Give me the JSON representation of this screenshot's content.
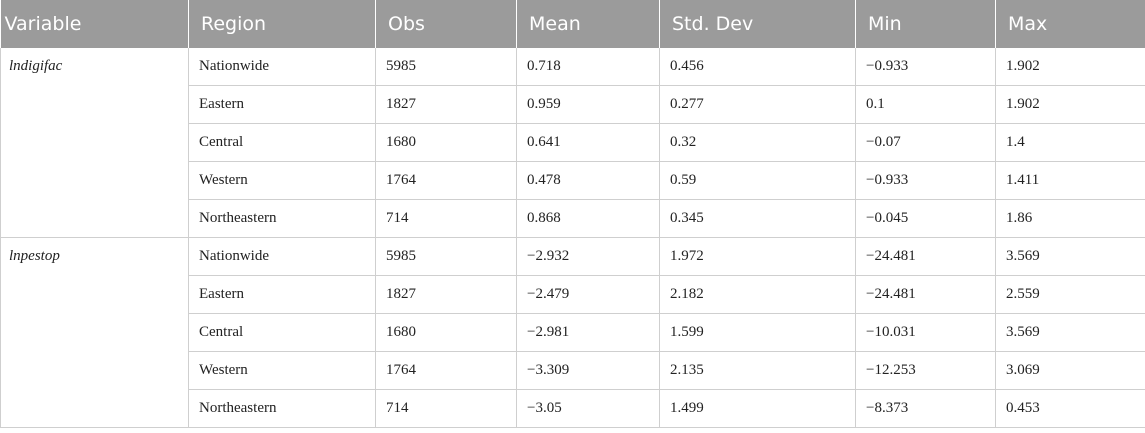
{
  "table": {
    "headers": [
      "Variable",
      "Region",
      "Obs",
      "Mean",
      "Std. Dev",
      "Min",
      "Max"
    ],
    "groups": [
      {
        "variable": "lndigifac",
        "rows": [
          [
            "Nationwide",
            "5985",
            "0.718",
            "0.456",
            "−0.933",
            "1.902"
          ],
          [
            "Eastern",
            "1827",
            "0.959",
            "0.277",
            "0.1",
            "1.902"
          ],
          [
            "Central",
            "1680",
            "0.641",
            "0.32",
            "−0.07",
            "1.4"
          ],
          [
            "Western",
            "1764",
            "0.478",
            "0.59",
            "−0.933",
            "1.411"
          ],
          [
            "Northeastern",
            "714",
            "0.868",
            "0.345",
            "−0.045",
            "1.86"
          ]
        ]
      },
      {
        "variable": "lnpestop",
        "rows": [
          [
            "Nationwide",
            "5985",
            "−2.932",
            "1.972",
            "−24.481",
            "3.569"
          ],
          [
            "Eastern",
            "1827",
            "−2.479",
            "2.182",
            "−24.481",
            "2.559"
          ],
          [
            "Central",
            "1680",
            "−2.981",
            "1.599",
            "−10.031",
            "3.569"
          ],
          [
            "Western",
            "1764",
            "−3.309",
            "2.135",
            "−12.253",
            "3.069"
          ],
          [
            "Northeastern",
            "714",
            "−3.05",
            "1.499",
            "−8.373",
            "0.453"
          ]
        ]
      }
    ]
  }
}
